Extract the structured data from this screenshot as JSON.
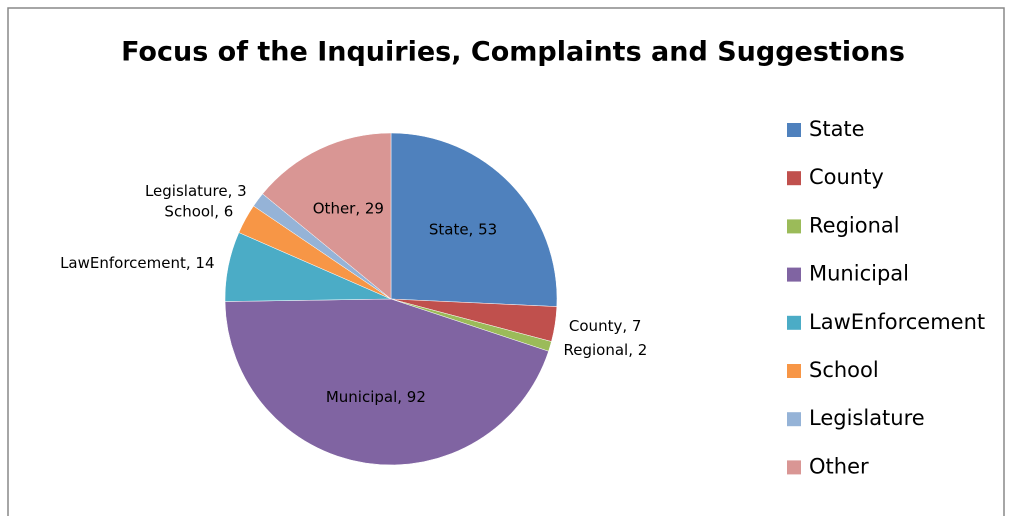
{
  "chart_data": {
    "type": "pie",
    "title": "Focus of the Inquiries, Complaints and Suggestions",
    "categories": [
      "State",
      "County",
      "Regional",
      "Municipal",
      "LawEnforcement",
      "School",
      "Legislature",
      "Other"
    ],
    "values": [
      53,
      7,
      2,
      92,
      14,
      6,
      3,
      29
    ],
    "value_labels": [
      "State, 53",
      "County, 7",
      "Regional, 2",
      "Municipal, 92",
      "LawEnforcement, 14",
      "School, 6",
      "Legislature, 3",
      "Other, 29"
    ],
    "colors": [
      "#4f81bd",
      "#c0504d",
      "#9bbb59",
      "#8064a2",
      "#4bacc6",
      "#f79646",
      "#95b3d7",
      "#d99694"
    ],
    "legend": "right"
  }
}
